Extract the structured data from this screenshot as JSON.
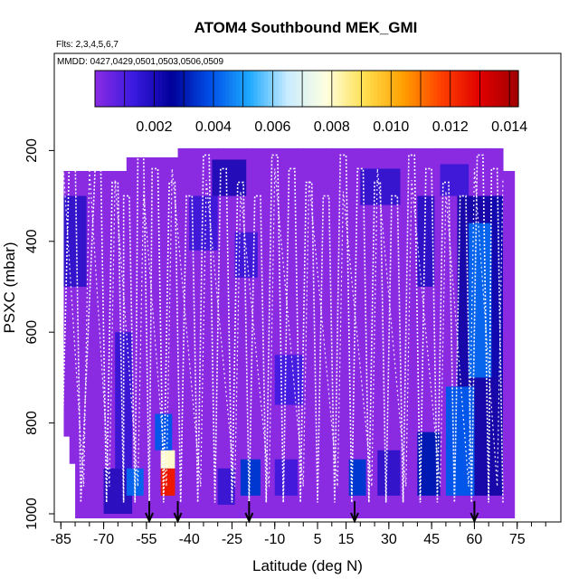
{
  "chart_data": {
    "type": "heatmap",
    "title": "ATOM4 Southbound MEK_GMI",
    "flights_note": "Flts: 2,3,4,5,6,7",
    "dates_note": "MMDD: 0427,0429,0501,0503,0506,0509",
    "xlabel": "Latitude (deg N)",
    "ylabel": "PSXC (mbar)",
    "xlim": [
      -87,
      90
    ],
    "ylim": [
      1010,
      0
    ],
    "x_ticks": [
      "-85",
      "-70",
      "-55",
      "-40",
      "-25",
      "-10",
      "5",
      "15",
      "30",
      "45",
      "60",
      "75"
    ],
    "y_ticks": [
      "200",
      "400",
      "600",
      "800",
      "1000"
    ],
    "colorbar": {
      "range": [
        0,
        0.0143
      ],
      "ticks": [
        "0.002",
        "0.004",
        "0.006",
        "0.008",
        "0.010",
        "0.012",
        "0.014"
      ],
      "colors": [
        "#8a2be2",
        "#3a1ae0",
        "#00009a",
        "#0050e8",
        "#1ea8ff",
        "#c8ecff",
        "#ffffe0",
        "#ffe050",
        "#ffa000",
        "#ff4000",
        "#e00000",
        "#a00000"
      ]
    },
    "background_color": "#8a2be2",
    "profile_line_color": "#ffffff",
    "arrow_latitudes": [
      -54,
      -44,
      -19,
      18,
      60
    ],
    "high_concentration_regions": [
      {
        "lat_range": [
          -50,
          -45
        ],
        "p_range": [
          900,
          960
        ],
        "value": 0.0125
      },
      {
        "lat_range": [
          -50,
          -45
        ],
        "p_range": [
          860,
          900
        ],
        "value": 0.008
      },
      {
        "lat_range": [
          -52,
          -46
        ],
        "p_range": [
          780,
          860
        ],
        "value": 0.004
      },
      {
        "lat_range": [
          59,
          64
        ],
        "p_range": [
          460,
          520
        ],
        "value": 0.007
      },
      {
        "lat_range": [
          58,
          66
        ],
        "p_range": [
          360,
          700
        ],
        "value": 0.0042
      },
      {
        "lat_range": [
          50,
          60
        ],
        "p_range": [
          720,
          960
        ],
        "value": 0.004
      },
      {
        "lat_range": [
          -62,
          -56
        ],
        "p_range": [
          900,
          960
        ],
        "value": 0.0042
      },
      {
        "lat_range": [
          -22,
          -15
        ],
        "p_range": [
          880,
          960
        ],
        "value": 0.0035
      },
      {
        "lat_range": [
          16,
          22
        ],
        "p_range": [
          880,
          960
        ],
        "value": 0.0035
      },
      {
        "lat_range": [
          40,
          48
        ],
        "p_range": [
          820,
          960
        ],
        "value": 0.003
      }
    ]
  }
}
